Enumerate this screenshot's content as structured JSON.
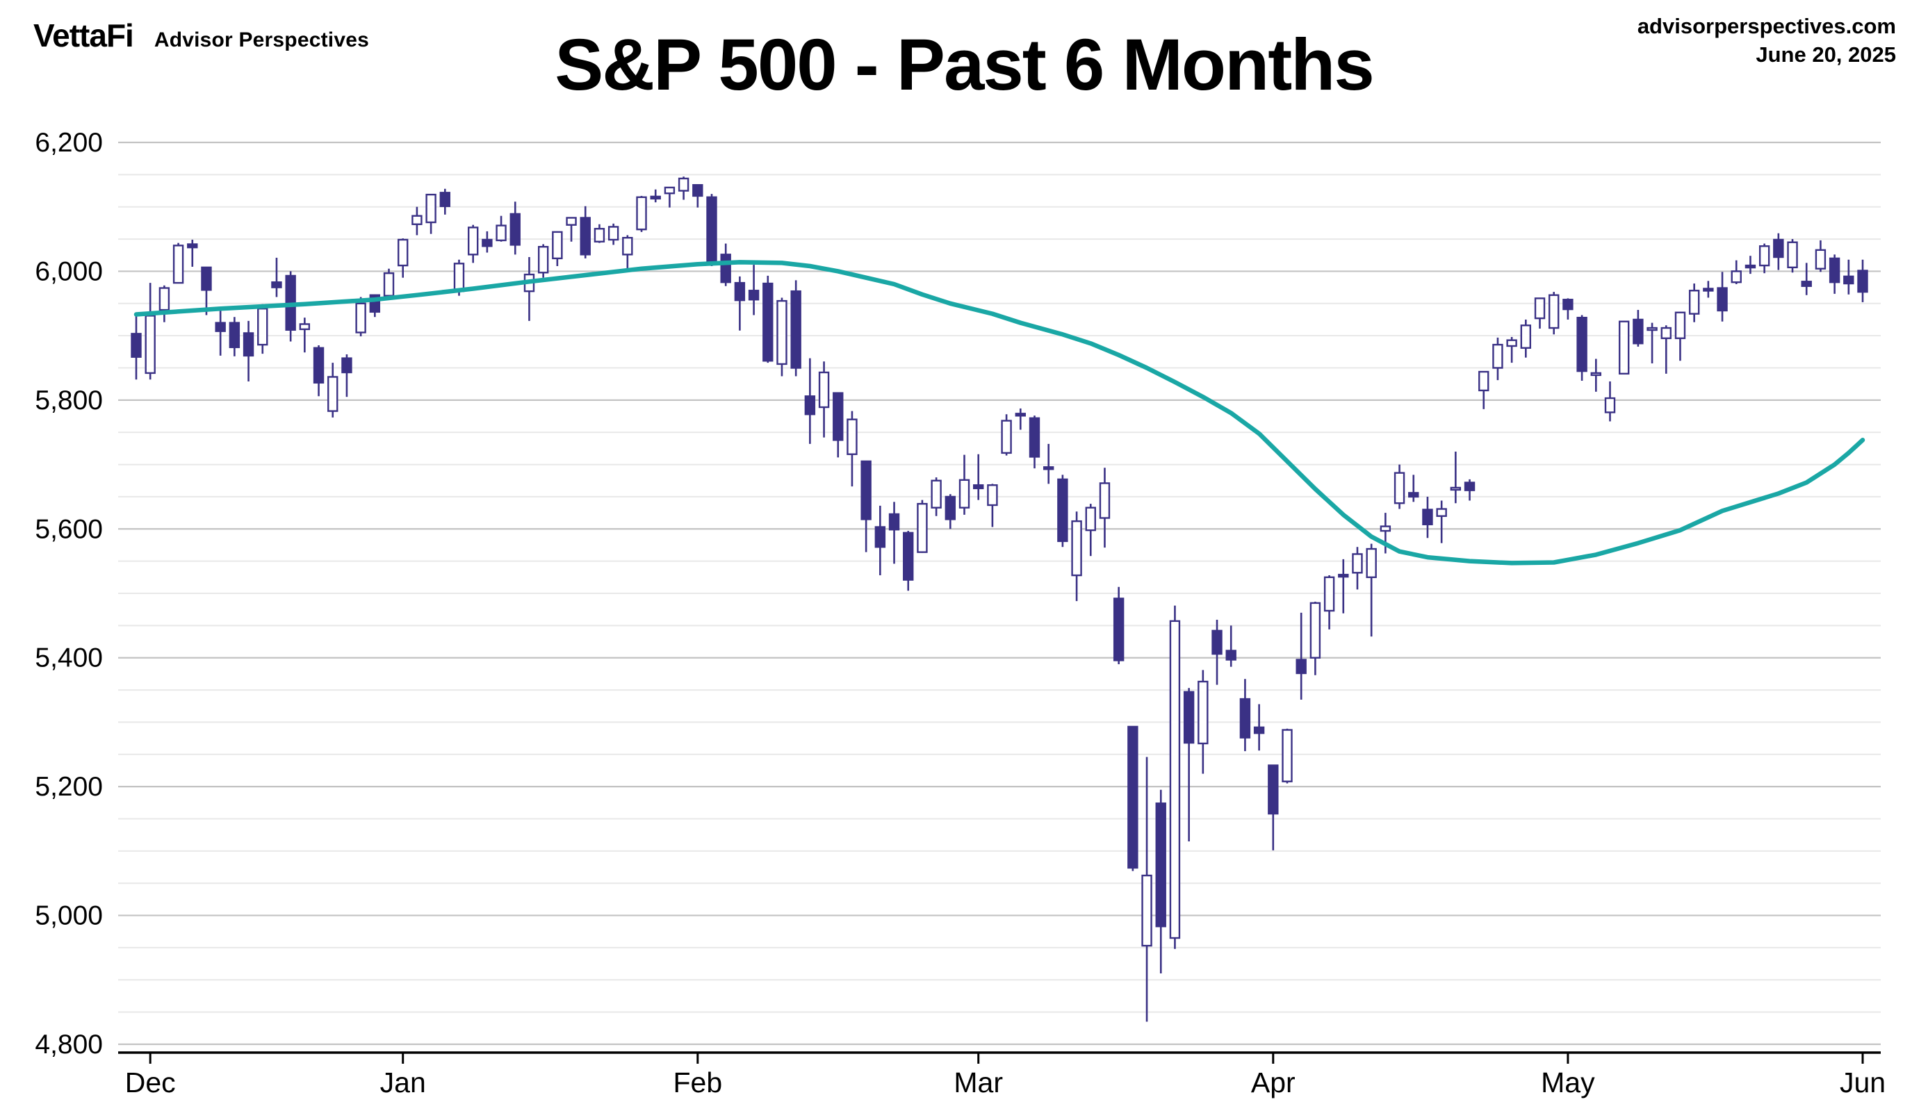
{
  "header": {
    "brand": "VettaFi",
    "brand_sub": "Advisor Perspectives",
    "site": "advisorperspectives.com",
    "date": "June 20, 2025"
  },
  "chart_data": {
    "type": "candlestick",
    "title": "S&P 500 - Past 6 Months",
    "xlabel": "",
    "ylabel": "",
    "ylim": [
      4800,
      6200
    ],
    "grid": {
      "major_step": 200,
      "minor_step": 50,
      "on": true
    },
    "legend": "none",
    "y_ticks": [
      {
        "v": 4800,
        "label": "4,800"
      },
      {
        "v": 5000,
        "label": "5,000"
      },
      {
        "v": 5200,
        "label": "5,200"
      },
      {
        "v": 5400,
        "label": "5,400"
      },
      {
        "v": 5600,
        "label": "5,600"
      },
      {
        "v": 5800,
        "label": "5,800"
      },
      {
        "v": 6000,
        "label": "6,000"
      },
      {
        "v": 6200,
        "label": "6,200"
      }
    ],
    "x_ticks": [
      {
        "i": 1,
        "label": "Dec"
      },
      {
        "i": 19,
        "label": "Jan"
      },
      {
        "i": 40,
        "label": "Feb"
      },
      {
        "i": 60,
        "label": "Mar"
      },
      {
        "i": 81,
        "label": "Apr"
      },
      {
        "i": 102,
        "label": "May"
      },
      {
        "i": 123,
        "label": "Jun"
      }
    ],
    "series": [
      {
        "name": "S&P 500 daily price (OHLC candles)",
        "type": "candles",
        "ohlc": [
          [
            5903,
            5935,
            5832,
            5867
          ],
          [
            5842,
            5982,
            5832,
            5931
          ],
          [
            5940,
            5978,
            5921,
            5974
          ],
          [
            5982,
            6044,
            5982,
            6040
          ],
          [
            6042,
            6049,
            6007,
            6037
          ],
          [
            6006,
            6006,
            5932,
            5971
          ],
          [
            5920,
            5940,
            5869,
            5907
          ],
          [
            5920,
            5929,
            5868,
            5882
          ],
          [
            5904,
            5923,
            5829,
            5869
          ],
          [
            5886,
            5949,
            5872,
            5942
          ],
          [
            5983,
            6021,
            5960,
            5975
          ],
          [
            5993,
            6000,
            5891,
            5909
          ],
          [
            5910,
            5928,
            5874,
            5918
          ],
          [
            5881,
            5885,
            5806,
            5827
          ],
          [
            5783,
            5858,
            5773,
            5836
          ],
          [
            5865,
            5871,
            5805,
            5843
          ],
          [
            5905,
            5960,
            5899,
            5950
          ],
          [
            5963,
            5964,
            5929,
            5937
          ],
          [
            5962,
            6004,
            5960,
            5997
          ],
          [
            6009,
            6051,
            5990,
            6049
          ],
          [
            6073,
            6100,
            6056,
            6086
          ],
          [
            6076,
            6118,
            6058,
            6119
          ],
          [
            6122,
            6128,
            6088,
            6101
          ],
          [
            5969,
            6018,
            5962,
            6012
          ],
          [
            6026,
            6072,
            6013,
            6068
          ],
          [
            6049,
            6062,
            6029,
            6039
          ],
          [
            6048,
            6086,
            6046,
            6071
          ],
          [
            6089,
            6108,
            6026,
            6041
          ],
          [
            5969,
            6022,
            5923,
            5995
          ],
          [
            5998,
            6042,
            5990,
            6038
          ],
          [
            6020,
            6062,
            6008,
            6061
          ],
          [
            6072,
            6084,
            6046,
            6083
          ],
          [
            6083,
            6101,
            6020,
            6026
          ],
          [
            6046,
            6073,
            6044,
            6066
          ],
          [
            6049,
            6074,
            6041,
            6069
          ],
          [
            6026,
            6056,
            6003,
            6052
          ],
          [
            6065,
            6117,
            6061,
            6115
          ],
          [
            6116,
            6127,
            6107,
            6115
          ],
          [
            6121,
            6130,
            6099,
            6130
          ],
          [
            6125,
            6147,
            6111,
            6144
          ],
          [
            6134,
            6135,
            6099,
            6117
          ],
          [
            6115,
            6120,
            6008,
            6013
          ],
          [
            6026,
            6043,
            5977,
            5983
          ],
          [
            5982,
            5992,
            5908,
            5955
          ],
          [
            5970,
            6010,
            5932,
            5956
          ],
          [
            5981,
            5993,
            5858,
            5861
          ],
          [
            5856,
            5959,
            5837,
            5954
          ],
          [
            5969,
            5986,
            5837,
            5850
          ],
          [
            5806,
            5865,
            5732,
            5778
          ],
          [
            5789,
            5860,
            5742,
            5843
          ],
          [
            5811,
            5812,
            5711,
            5738
          ],
          [
            5716,
            5783,
            5666,
            5770
          ],
          [
            5705,
            5705,
            5564,
            5615
          ],
          [
            5603,
            5636,
            5528,
            5572
          ],
          [
            5623,
            5642,
            5546,
            5599
          ],
          [
            5594,
            5597,
            5504,
            5521
          ],
          [
            5564,
            5645,
            5563,
            5639
          ],
          [
            5633,
            5680,
            5620,
            5675
          ],
          [
            5650,
            5654,
            5600,
            5615
          ],
          [
            5633,
            5715,
            5622,
            5676
          ],
          [
            5668,
            5716,
            5645,
            5663
          ],
          [
            5637,
            5670,
            5603,
            5668
          ],
          [
            5718,
            5778,
            5714,
            5768
          ],
          [
            5779,
            5787,
            5754,
            5777
          ],
          [
            5772,
            5776,
            5694,
            5712
          ],
          [
            5696,
            5732,
            5670,
            5693
          ],
          [
            5677,
            5684,
            5572,
            5581
          ],
          [
            5528,
            5627,
            5488,
            5612
          ],
          [
            5598,
            5639,
            5558,
            5633
          ],
          [
            5617,
            5695,
            5571,
            5671
          ],
          [
            5492,
            5510,
            5390,
            5396
          ],
          [
            5293,
            5293,
            5069,
            5074
          ],
          [
            4953,
            5246,
            4835,
            5062
          ],
          [
            5174,
            5195,
            4910,
            4983
          ],
          [
            4965,
            5481,
            4948,
            5457
          ],
          [
            5347,
            5353,
            5115,
            5268
          ],
          [
            5267,
            5381,
            5220,
            5363
          ],
          [
            5442,
            5459,
            5358,
            5406
          ],
          [
            5411,
            5450,
            5386,
            5397
          ],
          [
            5336,
            5367,
            5255,
            5276
          ],
          [
            5292,
            5328,
            5256,
            5283
          ],
          [
            5233,
            5234,
            5101,
            5158
          ],
          [
            5208,
            5290,
            5205,
            5288
          ],
          [
            5397,
            5470,
            5335,
            5376
          ],
          [
            5400,
            5487,
            5373,
            5485
          ],
          [
            5473,
            5528,
            5444,
            5525
          ],
          [
            5529,
            5553,
            5469,
            5528
          ],
          [
            5532,
            5572,
            5506,
            5561
          ],
          [
            5525,
            5577,
            5433,
            5569
          ],
          [
            5597,
            5625,
            5562,
            5604
          ],
          [
            5640,
            5700,
            5631,
            5687
          ],
          [
            5656,
            5684,
            5642,
            5650
          ],
          [
            5630,
            5650,
            5586,
            5607
          ],
          [
            5620,
            5644,
            5578,
            5631
          ],
          [
            5663,
            5720,
            5640,
            5664
          ],
          [
            5672,
            5677,
            5644,
            5660
          ],
          [
            5815,
            5845,
            5786,
            5844
          ],
          [
            5850,
            5897,
            5831,
            5886
          ],
          [
            5884,
            5898,
            5858,
            5893
          ],
          [
            5881,
            5925,
            5866,
            5916
          ],
          [
            5927,
            5958,
            5911,
            5958
          ],
          [
            5912,
            5968,
            5902,
            5963
          ],
          [
            5956,
            5958,
            5925,
            5941
          ],
          [
            5928,
            5932,
            5830,
            5845
          ],
          [
            5842,
            5864,
            5813,
            5842
          ],
          [
            5781,
            5829,
            5767,
            5803
          ],
          [
            5841,
            5923,
            5841,
            5922
          ],
          [
            5925,
            5940,
            5883,
            5888
          ],
          [
            5912,
            5920,
            5857,
            5912
          ],
          [
            5896,
            5916,
            5841,
            5912
          ],
          [
            5896,
            5937,
            5861,
            5936
          ],
          [
            5934,
            5981,
            5921,
            5970
          ],
          [
            5973,
            5985,
            5959,
            5971
          ],
          [
            5974,
            5999,
            5922,
            5939
          ],
          [
            5983,
            6017,
            5980,
            6000
          ],
          [
            6009,
            6024,
            5996,
            6006
          ],
          [
            6009,
            6043,
            5997,
            6039
          ],
          [
            6049,
            6059,
            6002,
            6022
          ],
          [
            6006,
            6050,
            5998,
            6045
          ],
          [
            5984,
            6013,
            5963,
            5977
          ],
          [
            6004,
            6048,
            5999,
            6033
          ],
          [
            6020,
            6026,
            5965,
            5983
          ],
          [
            5992,
            6018,
            5964,
            5981
          ],
          [
            6001,
            6018,
            5952,
            5968
          ]
        ]
      },
      {
        "name": "moving average",
        "type": "line",
        "keypoints": [
          [
            0,
            5933
          ],
          [
            6,
            5942
          ],
          [
            12,
            5949
          ],
          [
            17,
            5956
          ],
          [
            20,
            5963
          ],
          [
            24,
            5973
          ],
          [
            28,
            5984
          ],
          [
            32,
            5994
          ],
          [
            36,
            6004
          ],
          [
            40,
            6011
          ],
          [
            43,
            6014
          ],
          [
            46,
            6013
          ],
          [
            48,
            6008
          ],
          [
            50,
            6000
          ],
          [
            52,
            5990
          ],
          [
            54,
            5980
          ],
          [
            56,
            5964
          ],
          [
            58,
            5950
          ],
          [
            61,
            5934
          ],
          [
            63,
            5920
          ],
          [
            66,
            5902
          ],
          [
            68,
            5888
          ],
          [
            70,
            5870
          ],
          [
            72,
            5850
          ],
          [
            74,
            5828
          ],
          [
            76,
            5805
          ],
          [
            78,
            5780
          ],
          [
            80,
            5748
          ],
          [
            82,
            5705
          ],
          [
            84,
            5662
          ],
          [
            86,
            5622
          ],
          [
            88,
            5588
          ],
          [
            90,
            5565
          ],
          [
            92,
            5556
          ],
          [
            95,
            5550
          ],
          [
            98,
            5547
          ],
          [
            101,
            5548
          ],
          [
            102,
            5552
          ],
          [
            104,
            5560
          ],
          [
            107,
            5578
          ],
          [
            110,
            5598
          ],
          [
            113,
            5628
          ],
          [
            117,
            5655
          ],
          [
            119,
            5672
          ],
          [
            121,
            5700
          ],
          [
            122,
            5718
          ],
          [
            123,
            5738
          ]
        ]
      }
    ],
    "colors": {
      "candle": "#3a3185",
      "candle_up_fill": "#ffffff",
      "ma_line": "#1aa7a5",
      "grid_major": "#c3c3c3",
      "grid_minor": "#e8e8e8",
      "axis": "#000000",
      "text": "#000000"
    }
  }
}
